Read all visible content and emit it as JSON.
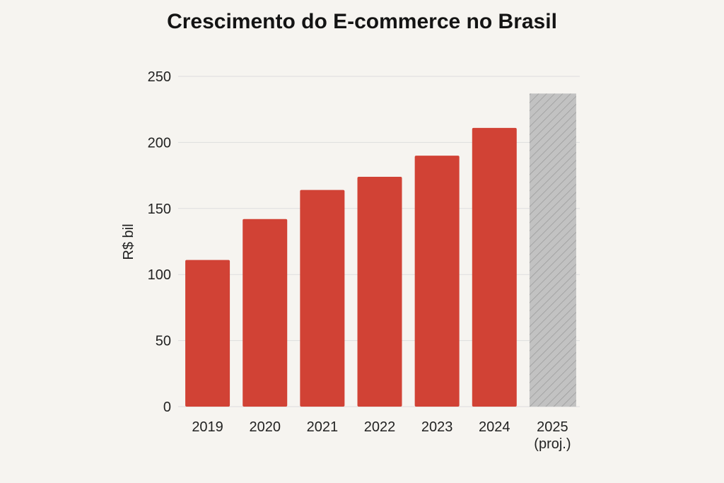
{
  "chart_data": {
    "type": "bar",
    "title": "Crescimento do E-commerce no Brasil",
    "xlabel": "",
    "ylabel": "R$ bil",
    "categories": [
      "2019",
      "2020",
      "2021",
      "2022",
      "2023",
      "2024",
      "2025\n(proj.)"
    ],
    "values": [
      111,
      142,
      164,
      174,
      190,
      211,
      237
    ],
    "projected": [
      false,
      false,
      false,
      false,
      false,
      false,
      true
    ],
    "ylim": [
      0,
      250
    ],
    "yticks": [
      0,
      50,
      100,
      150,
      200,
      250
    ],
    "grid": true,
    "legend": "none",
    "colors": {
      "bar": "#d14235",
      "projected": "#c2c2c2",
      "projected_hatch": "#9a9a9a",
      "background": "#f6f4f0",
      "grid": "#dddddd"
    }
  }
}
